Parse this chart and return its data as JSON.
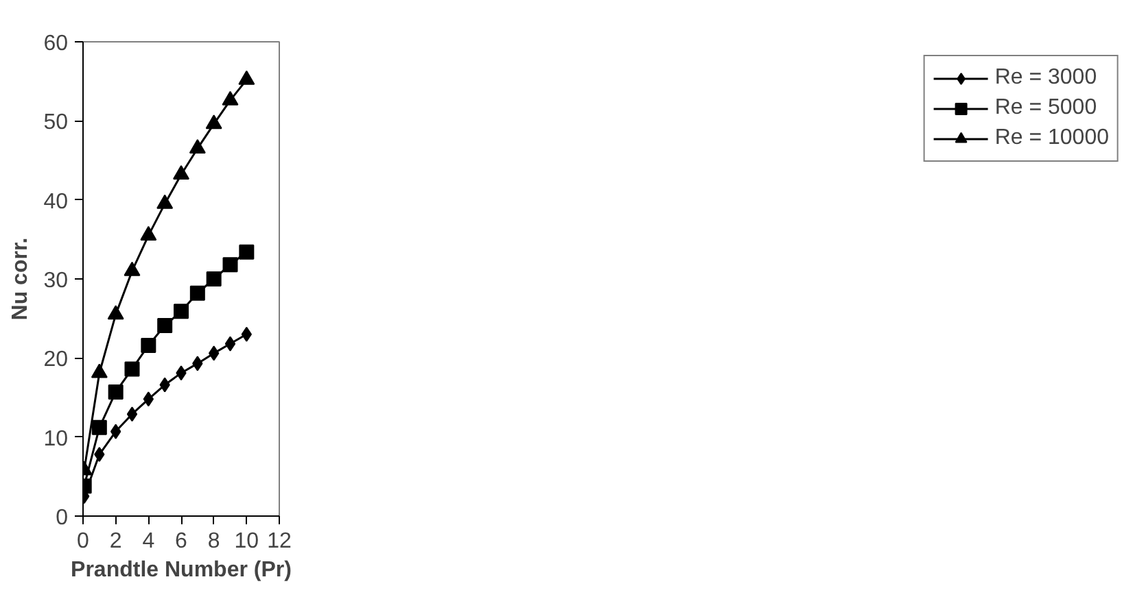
{
  "chart_data": {
    "type": "line",
    "xlabel": "Prandtle Number (Pr)",
    "ylabel": "Nu corr.",
    "x": [
      0.07,
      1,
      2,
      3,
      4,
      5,
      6,
      7,
      8,
      9,
      10
    ],
    "series": [
      {
        "name": "Re = 3000",
        "color": "#000000",
        "marker": "diamond",
        "values": [
          2.5,
          7.8,
          10.7,
          12.9,
          14.8,
          16.6,
          18.1,
          19.3,
          20.6,
          21.8,
          23.0
        ]
      },
      {
        "name": "Re = 5000",
        "color": "#000000",
        "marker": "square",
        "values": [
          3.8,
          11.2,
          15.7,
          18.6,
          21.6,
          24.1,
          25.9,
          28.2,
          30.0,
          31.8,
          33.4
        ]
      },
      {
        "name": "Re = 10000",
        "color": "#000000",
        "marker": "triangle",
        "values": [
          5.8,
          18.1,
          25.5,
          31.0,
          35.5,
          39.5,
          43.2,
          46.5,
          49.6,
          52.6,
          55.2
        ]
      }
    ],
    "xlim": [
      0,
      12
    ],
    "xticks": [
      0,
      2,
      4,
      6,
      8,
      10,
      12
    ],
    "ylim": [
      0,
      60
    ],
    "yticks": [
      0,
      10,
      20,
      30,
      40,
      50,
      60
    ],
    "grid": false,
    "legend": "right",
    "line_style": "solid"
  }
}
